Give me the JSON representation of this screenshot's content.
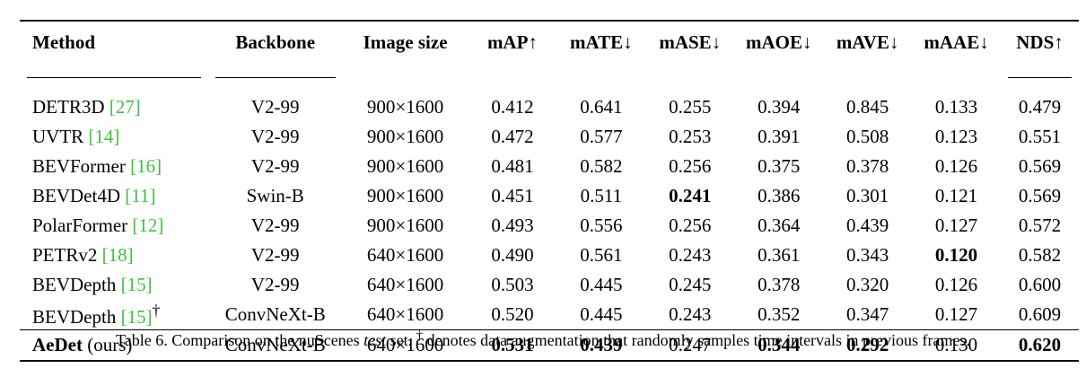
{
  "table": {
    "headers": {
      "method": "Method",
      "backbone": "Backbone",
      "image_size": "Image size",
      "map": "mAP↑",
      "mate": "mATE↓",
      "mase": "mASE↓",
      "maoe": "mAOE↓",
      "mave": "mAVE↓",
      "maae": "mAAE↓",
      "nds": "NDS↑"
    },
    "rows": [
      {
        "method": "DETR3D ",
        "cite": "[27]",
        "mark": "",
        "backbone": "V2-99",
        "size": "900×1600",
        "map": "0.412",
        "mate": "0.641",
        "mase": "0.255",
        "maoe": "0.394",
        "mave": "0.845",
        "maae": "0.133",
        "nds": "0.479"
      },
      {
        "method": "UVTR ",
        "cite": "[14]",
        "mark": "",
        "backbone": "V2-99",
        "size": "900×1600",
        "map": "0.472",
        "mate": "0.577",
        "mase": "0.253",
        "maoe": "0.391",
        "mave": "0.508",
        "maae": "0.123",
        "nds": "0.551"
      },
      {
        "method": "BEVFormer ",
        "cite": "[16]",
        "mark": "",
        "backbone": "V2-99",
        "size": "900×1600",
        "map": "0.481",
        "mate": "0.582",
        "mase": "0.256",
        "maoe": "0.375",
        "mave": "0.378",
        "maae": "0.126",
        "nds": "0.569"
      },
      {
        "method": "BEVDet4D ",
        "cite": "[11]",
        "mark": "",
        "backbone": "Swin-B",
        "size": "900×1600",
        "map": "0.451",
        "mate": "0.511",
        "mase": "0.241",
        "maoe": "0.386",
        "mave": "0.301",
        "maae": "0.121",
        "nds": "0.569"
      },
      {
        "method": "PolarFormer ",
        "cite": "[12]",
        "mark": "",
        "backbone": "V2-99",
        "size": "900×1600",
        "map": "0.493",
        "mate": "0.556",
        "mase": "0.256",
        "maoe": "0.364",
        "mave": "0.439",
        "maae": "0.127",
        "nds": "0.572"
      },
      {
        "method": "PETRv2 ",
        "cite": "[18]",
        "mark": "",
        "backbone": "V2-99",
        "size": "640×1600",
        "map": "0.490",
        "mate": "0.561",
        "mase": "0.243",
        "maoe": "0.361",
        "mave": "0.343",
        "maae": "0.120",
        "nds": "0.582"
      },
      {
        "method": "BEVDepth ",
        "cite": "[15]",
        "mark": "",
        "backbone": "V2-99",
        "size": "640×1600",
        "map": "0.503",
        "mate": "0.445",
        "mase": "0.245",
        "maoe": "0.378",
        "mave": "0.320",
        "maae": "0.126",
        "nds": "0.600"
      },
      {
        "method": "BEVDepth ",
        "cite": "[15]",
        "mark": "†",
        "backbone": "ConvNeXt-B",
        "size": "640×1600",
        "map": "0.520",
        "mate": "0.445",
        "mase": "0.243",
        "maoe": "0.352",
        "mave": "0.347",
        "maae": "0.127",
        "nds": "0.609"
      }
    ],
    "ours": {
      "method_bold": "AeDet",
      "method_suffix": " (ours)",
      "backbone": "ConvNeXt-B",
      "size": "640×1600",
      "map": "0.531",
      "mate": "0.439",
      "mase": "0.247",
      "maoe": "0.344",
      "mave": "0.292",
      "maae": "0.130",
      "nds": "0.620"
    }
  },
  "caption": {
    "prefix": "Table 6. Comparison on the nuScenes ",
    "italic": "test",
    "middle": " set. ",
    "dagger": "†",
    "suffix": " denotes data augmentation that randomly samples time intervals in previous frames."
  },
  "colors": {
    "citation": "#3fbf3f"
  }
}
